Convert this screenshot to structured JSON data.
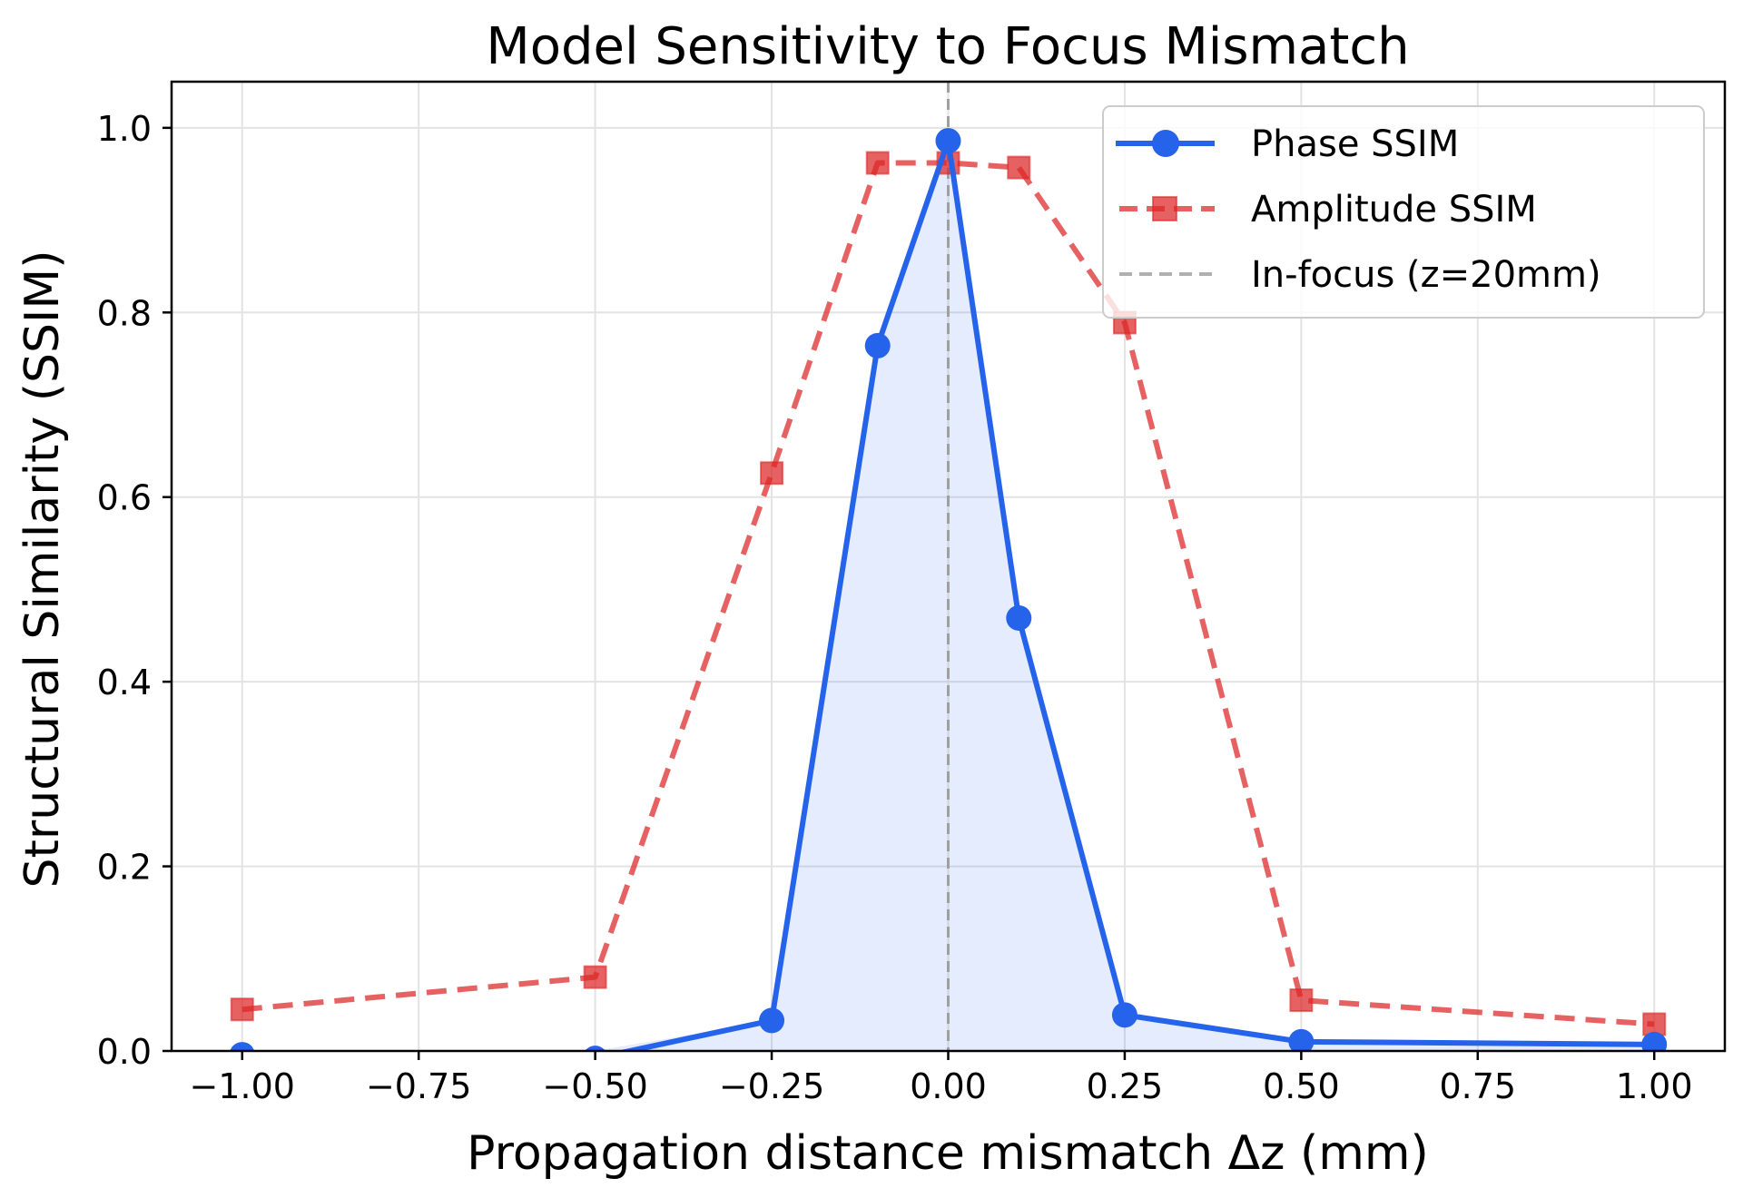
{
  "chart_data": {
    "type": "line",
    "title": "Model Sensitivity to Focus Mismatch",
    "xlabel": "Propagation distance mismatch Δz (mm)",
    "ylabel": "Structural Similarity (SSIM)",
    "xlim": [
      -1.1,
      1.1
    ],
    "ylim": [
      0.0,
      1.05
    ],
    "grid": true,
    "legend_position": "top-right",
    "x": [
      -1.0,
      -0.5,
      -0.25,
      -0.1,
      0.0,
      0.1,
      0.25,
      0.5,
      1.0
    ],
    "xticks": [
      -1.0,
      -0.75,
      -0.5,
      -0.25,
      0.0,
      0.25,
      0.5,
      0.75,
      1.0
    ],
    "xtick_labels": [
      "−1.00",
      "−0.75",
      "−0.50",
      "−0.25",
      "0.00",
      "0.25",
      "0.50",
      "0.75",
      "1.00"
    ],
    "yticks": [
      0.0,
      0.2,
      0.4,
      0.6,
      0.8,
      1.0
    ],
    "ytick_labels": [
      "0.0",
      "0.2",
      "0.4",
      "0.6",
      "0.8",
      "1.0"
    ],
    "series": [
      {
        "name": "Phase SSIM",
        "style": "solid",
        "marker": "circle",
        "color": "#2563eb",
        "fill_under": true,
        "fill_color": "#2563eb",
        "values": [
          -0.004,
          -0.008,
          0.033,
          0.764,
          0.986,
          0.469,
          0.039,
          0.01,
          0.007
        ]
      },
      {
        "name": "Amplitude SSIM",
        "style": "dashed",
        "marker": "square",
        "color": "#dc2626",
        "values": [
          0.045,
          0.08,
          0.626,
          0.962,
          0.962,
          0.957,
          0.789,
          0.055,
          0.029
        ]
      }
    ],
    "reference_lines": [
      {
        "name": "In-focus (z=20mm)",
        "orientation": "vertical",
        "x": 0.0,
        "style": "dashed",
        "color": "#a0a0a0"
      }
    ],
    "legend": [
      "Phase SSIM",
      "Amplitude SSIM",
      "In-focus (z=20mm)"
    ]
  }
}
